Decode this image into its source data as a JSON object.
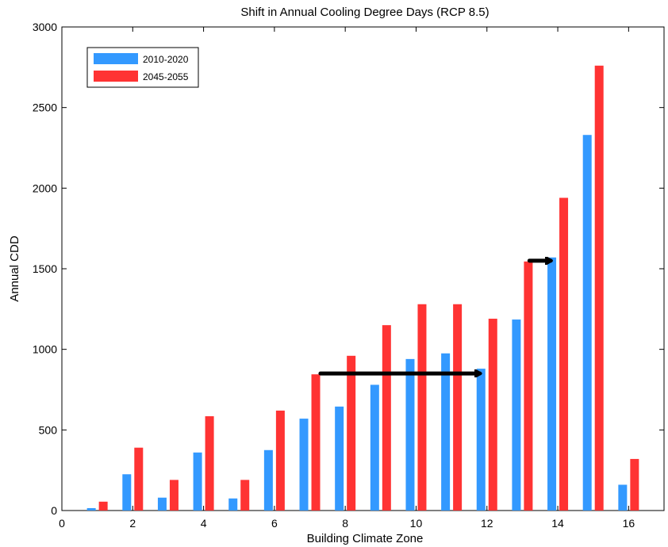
{
  "chart_data": {
    "type": "bar",
    "title": "Shift in Annual Cooling Degree Days (RCP 8.5)",
    "xlabel": "Building Climate Zone",
    "ylabel": "Annual CDD",
    "xlim": [
      0,
      17
    ],
    "ylim": [
      0,
      3000
    ],
    "xticks": [
      0,
      2,
      4,
      6,
      8,
      10,
      12,
      14,
      16
    ],
    "yticks": [
      0,
      500,
      1000,
      1500,
      2000,
      2500,
      3000
    ],
    "categories": [
      1,
      2,
      3,
      4,
      5,
      6,
      7,
      8,
      9,
      10,
      11,
      12,
      13,
      14,
      15,
      16
    ],
    "series": [
      {
        "name": "2010-2020",
        "color": "#3399ff",
        "values": [
          15,
          225,
          80,
          360,
          75,
          375,
          570,
          645,
          780,
          940,
          975,
          880,
          1185,
          1570,
          2330,
          160
        ]
      },
      {
        "name": "2045-2055",
        "color": "#ff3333",
        "values": [
          55,
          390,
          190,
          585,
          190,
          620,
          845,
          960,
          1150,
          1280,
          1280,
          1190,
          1545,
          1940,
          2760,
          320
        ]
      }
    ],
    "grid": false,
    "legend_position": "top-left",
    "annotations": [
      {
        "type": "arrow",
        "from": [
          7.3,
          850
        ],
        "to": [
          11.8,
          850
        ],
        "color": "#000000"
      },
      {
        "type": "arrow",
        "from": [
          13.2,
          1550
        ],
        "to": [
          13.8,
          1550
        ],
        "color": "#000000"
      }
    ]
  }
}
